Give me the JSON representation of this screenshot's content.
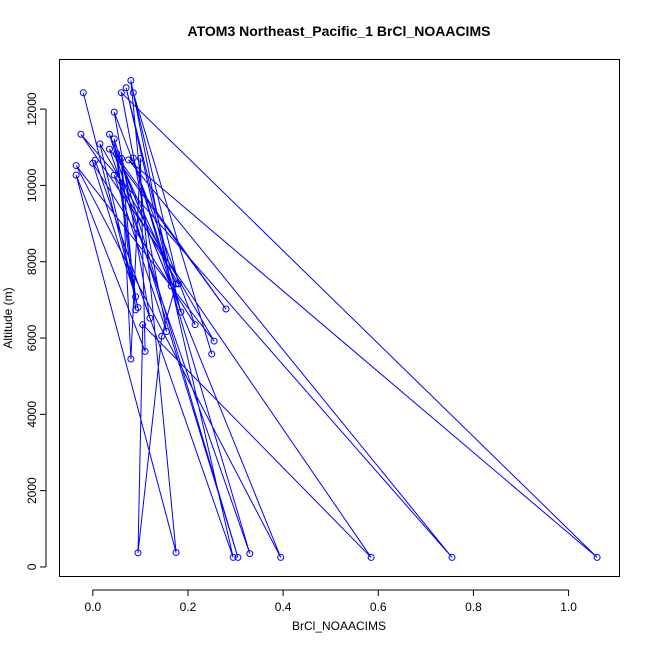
{
  "chart_data": {
    "type": "line",
    "title": "ATOM3 Northeast_Pacific_1 BrCl_NOAACIMS",
    "xlabel": "BrCl_NOAACIMS",
    "ylabel": "Altitude (m)",
    "xlim": [
      -0.07,
      1.107
    ],
    "ylim": [
      -250,
      13300
    ],
    "x_ticks": [
      0.0,
      0.2,
      0.4,
      0.6,
      0.8,
      1.0
    ],
    "x_tick_labels": [
      "0.0",
      "0.2",
      "0.4",
      "0.6",
      "0.8",
      "1.0"
    ],
    "y_ticks": [
      0,
      2000,
      4000,
      6000,
      8000,
      10000,
      12000
    ],
    "y_tick_labels": [
      "0",
      "2000",
      "4000",
      "6000",
      "8000",
      "10000",
      "12000"
    ],
    "grid": false,
    "legend": "none",
    "marker": "open-circle",
    "series": [
      {
        "color": "#0000ff",
        "x": [
          -0.02,
          0.095,
          0.015,
          0.255,
          -0.035,
          0.395,
          0.035,
          0.305,
          0.045,
          0.09,
          0.06,
          0.08,
          0.1,
          0.11,
          -0.035,
          0.175,
          0.08,
          0.165,
          0.055,
          0.28,
          0.035,
          0.33,
          0.085,
          0.185,
          0.07,
          0.295,
          0.005,
          0.12,
          0.045,
          0.215,
          0.0,
          0.09,
          0.05,
          0.175,
          0.145,
          0.095,
          0.105,
          0.585,
          -0.025,
          0.755,
          0.075,
          1.06,
          0.06,
          0.155,
          0.045,
          0.18,
          0.085,
          0.25
        ],
        "y": [
          12430,
          6800,
          11090,
          5920,
          10520,
          250,
          11340,
          250,
          11220,
          6740,
          10710,
          5450,
          10710,
          5650,
          10270,
          380,
          12750,
          7360,
          10690,
          6760,
          10950,
          350,
          10720,
          6680,
          12560,
          250,
          10660,
          6520,
          11920,
          6350,
          10580,
          7080,
          10840,
          7420,
          6050,
          370,
          6350,
          250,
          11340,
          250,
          10670,
          250,
          12430,
          6170,
          10270,
          7420,
          12430,
          5580
        ]
      }
    ]
  }
}
